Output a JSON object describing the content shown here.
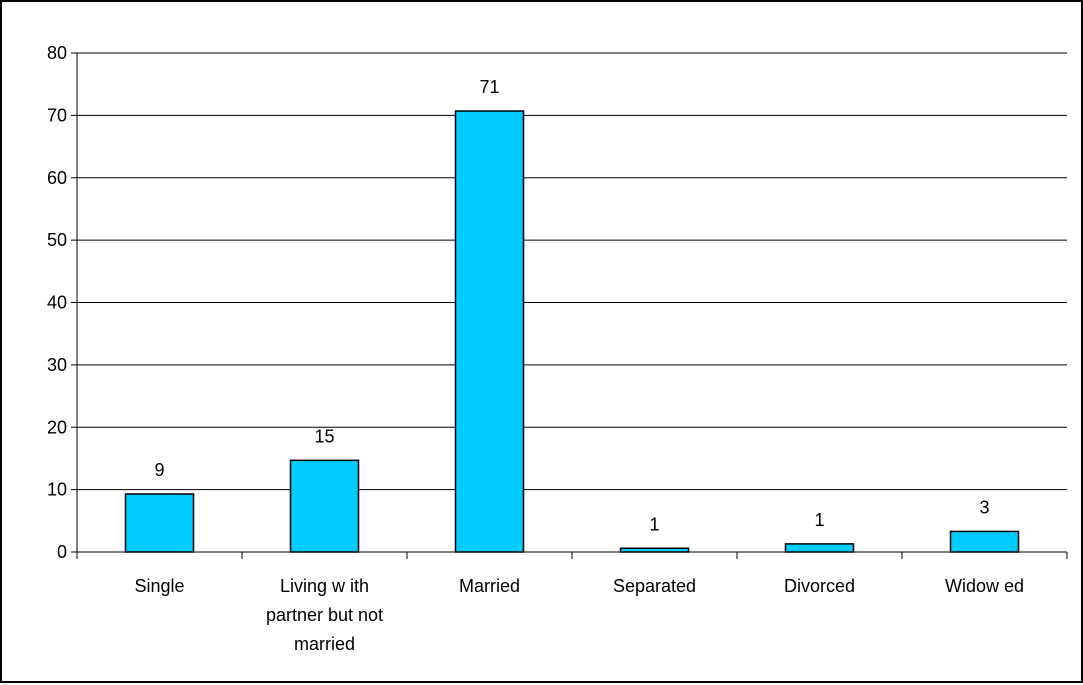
{
  "chart_data": {
    "type": "bar",
    "categories": [
      [
        "Single"
      ],
      [
        "Living w ith",
        "partner but not",
        "married"
      ],
      [
        "Married"
      ],
      [
        "Separated"
      ],
      [
        "Divorced"
      ],
      [
        "Widow ed"
      ]
    ],
    "values": [
      9.3,
      14.7,
      70.7,
      0.6,
      1.3,
      3.3
    ],
    "data_labels": [
      "9",
      "15",
      "71",
      "1",
      "1",
      "3"
    ],
    "ylim": [
      0,
      80
    ],
    "yticks": [
      "0",
      "10",
      "20",
      "30",
      "40",
      "50",
      "60",
      "70",
      "80"
    ],
    "grid": true,
    "legend": "none",
    "title": "",
    "xlabel": "",
    "ylabel": "",
    "colors": {
      "bar_fill": "#00CCFF",
      "bar_stroke": "#000000",
      "grid": "#000000"
    }
  }
}
